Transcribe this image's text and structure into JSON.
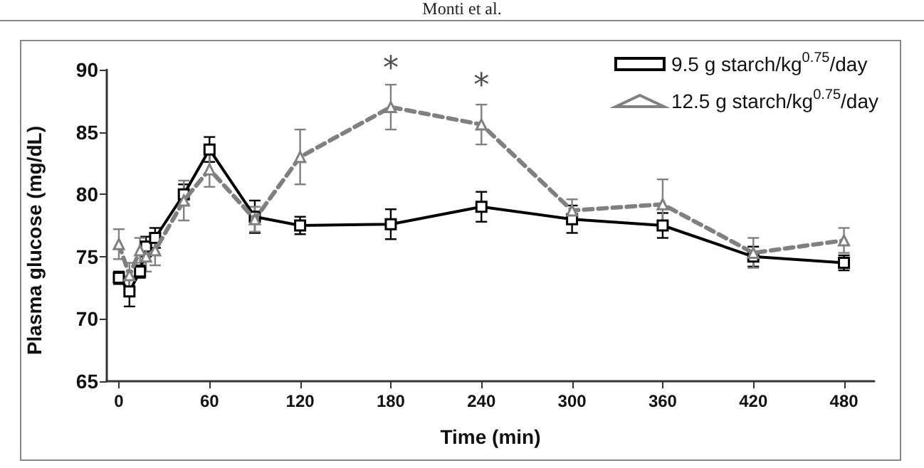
{
  "chart_data": {
    "type": "line",
    "xlabel": "Time (min)",
    "ylabel": "Plasma glucose (mg/dL)",
    "xlim": [
      -8,
      500
    ],
    "xticks": [
      0,
      60,
      120,
      180,
      240,
      300,
      360,
      420,
      480
    ],
    "ylim": [
      65,
      90
    ],
    "yticks": [
      65,
      70,
      75,
      80,
      85,
      90
    ],
    "grid": false,
    "legend": "top right",
    "annotations": [
      "Monti et al.",
      {
        "text": "*",
        "x": 180,
        "y": 87
      },
      {
        "text": "*",
        "x": 240,
        "y": 85.6
      }
    ],
    "series": [
      {
        "name": "9.5 g starch/kg$^{0.75}$/day",
        "color": "#000000",
        "marker": "square",
        "line_style": "solid",
        "x": [
          0,
          7,
          14,
          18,
          24,
          43,
          60,
          90,
          120,
          180,
          240,
          300,
          360,
          420,
          480
        ],
        "values": [
          73.3,
          72.2,
          73.8,
          75.8,
          76.5,
          80,
          83.6,
          78.2,
          77.5,
          77.6,
          79,
          78,
          77.5,
          75,
          74.5
        ],
        "errors": [
          0.5,
          1.2,
          0.5,
          0.8,
          0.8,
          0.8,
          1,
          1.3,
          0.7,
          1.2,
          1.2,
          1.1,
          1,
          0.8,
          0.6
        ]
      },
      {
        "name": "12.5 g starch/kg$^{0.75}$/day",
        "color": "#808080",
        "marker": "triangle",
        "line_style": "dashed",
        "x": [
          0,
          7,
          14,
          18,
          24,
          43,
          60,
          90,
          120,
          180,
          240,
          300,
          360,
          420,
          480
        ],
        "values": [
          76,
          73.5,
          75.5,
          75,
          75.5,
          79.5,
          82,
          78,
          83,
          87,
          85.6,
          78.7,
          79.2,
          75.3,
          76.3
        ],
        "errors": [
          1.2,
          1,
          1,
          1.2,
          1.2,
          1.6,
          1.4,
          1,
          2.2,
          1.8,
          1.6,
          0.9,
          2,
          1.2,
          1
        ]
      }
    ]
  }
}
